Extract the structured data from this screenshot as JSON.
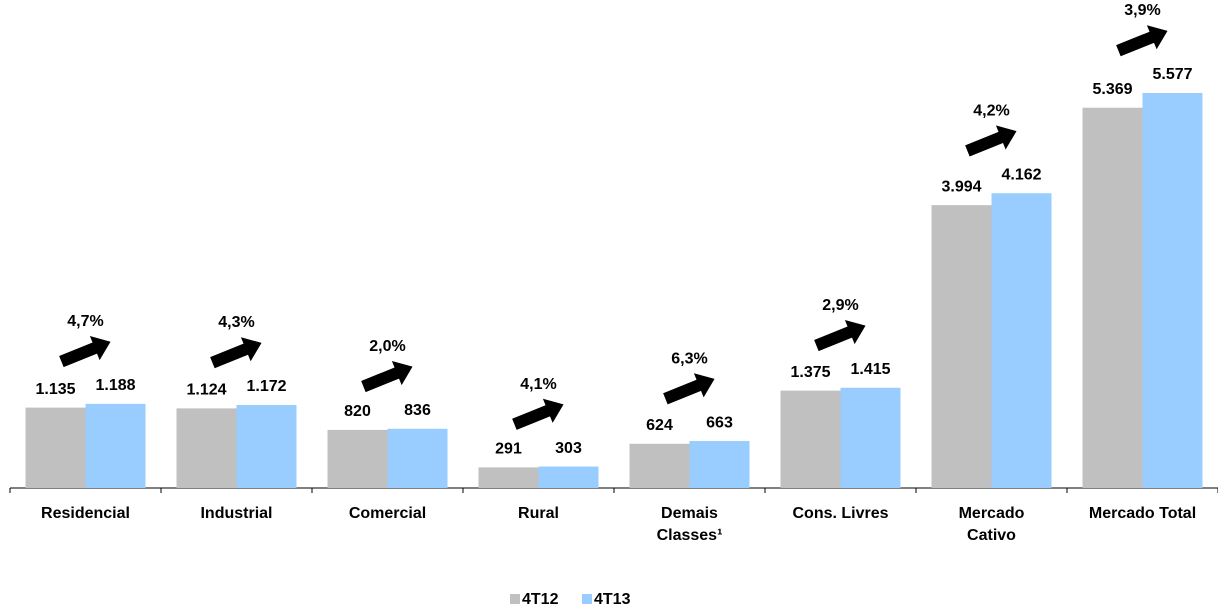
{
  "chart_data": {
    "type": "bar",
    "categories": [
      "Residencial",
      "Industrial",
      "Comercial",
      "Rural",
      "Demais\nClasses¹",
      "Cons. Livres",
      "Mercado\nCativo",
      "Mercado Total"
    ],
    "series": [
      {
        "name": "4T12",
        "color": "#c0c0c0",
        "values": [
          1135,
          1124,
          820,
          291,
          624,
          1375,
          3994,
          5369
        ],
        "value_labels": [
          "1.135",
          "1.124",
          "820",
          "291",
          "624",
          "1.375",
          "3.994",
          "5.369"
        ]
      },
      {
        "name": "4T13",
        "color": "#99ccff",
        "values": [
          1188,
          1172,
          836,
          303,
          663,
          1415,
          4162,
          5577
        ],
        "value_labels": [
          "1.188",
          "1.172",
          "836",
          "303",
          "663",
          "1.415",
          "4.162",
          "5.577"
        ]
      }
    ],
    "annotations": [
      "4,7%",
      "4,3%",
      "2,0%",
      "4,1%",
      "6,3%",
      "2,9%",
      "4,2%",
      "3,9%"
    ],
    "legend": "bottom"
  }
}
